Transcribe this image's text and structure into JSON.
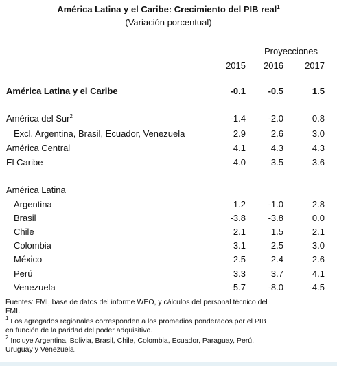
{
  "header": {
    "title": "América Latina y el Caribe: Crecimiento del PIB real",
    "title_note": "1",
    "subtitle": "(Variación porcentual)"
  },
  "table": {
    "projections_label": "Proyecciones",
    "years": [
      "2015",
      "2016",
      "2017"
    ],
    "rows": [
      {
        "label": "América Latina y el Caribe",
        "values": [
          "-0.1",
          "-0.5",
          "1.5"
        ]
      },
      {
        "label": "América del Sur",
        "note": "2",
        "values": [
          "-1.4",
          "-2.0",
          "0.8"
        ]
      },
      {
        "label": "Excl. Argentina, Brasil, Ecuador, Venezuela",
        "values": [
          "2.9",
          "2.6",
          "3.0"
        ]
      },
      {
        "label": "América Central",
        "values": [
          "4.1",
          "4.3",
          "4.3"
        ]
      },
      {
        "label": "El Caribe",
        "values": [
          "4.0",
          "3.5",
          "3.6"
        ]
      },
      {
        "label": "América Latina"
      },
      {
        "label": "Argentina",
        "values": [
          "1.2",
          "-1.0",
          "2.8"
        ]
      },
      {
        "label": "Brasil",
        "values": [
          "-3.8",
          "-3.8",
          "0.0"
        ]
      },
      {
        "label": "Chile",
        "values": [
          "2.1",
          "1.5",
          "2.1"
        ]
      },
      {
        "label": "Colombia",
        "values": [
          "3.1",
          "2.5",
          "3.0"
        ]
      },
      {
        "label": "México",
        "values": [
          "2.5",
          "2.4",
          "2.6"
        ]
      },
      {
        "label": "Perú",
        "values": [
          "3.3",
          "3.7",
          "4.1"
        ]
      },
      {
        "label": "Venezuela",
        "values": [
          "-5.7",
          "-8.0",
          "-4.5"
        ]
      }
    ]
  },
  "footnotes": [
    {
      "text": "Fuentes: FMI, base de datos del informe WEO, y cálculos del personal técnico del FMI."
    },
    {
      "mark": "1",
      "text": "Los agregados regionales corresponden a los promedios ponderados por el PIB en función de la paridad del poder adquisitivo."
    },
    {
      "mark": "2",
      "text": "Incluye Argentina, Bolivia, Brasil, Chile, Colombia, Ecuador, Paraguay, Perú, Uruguay y Venezuela."
    }
  ]
}
